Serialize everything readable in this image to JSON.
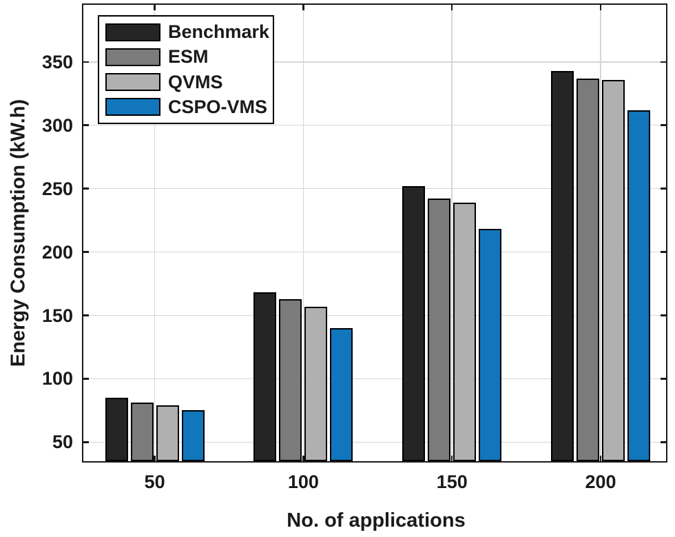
{
  "chart_data": {
    "type": "bar",
    "title": "",
    "xlabel": "No. of applications",
    "ylabel": "Energy Consumption (kW.h)",
    "categories": [
      "50",
      "100",
      "150",
      "200"
    ],
    "x": [
      50,
      100,
      150,
      200
    ],
    "series": [
      {
        "name": "Benchmark",
        "color": "#252525",
        "values": [
          85,
          168,
          252,
          343
        ]
      },
      {
        "name": "ESM",
        "color": "#7b7b7b",
        "values": [
          81,
          163,
          242,
          337
        ]
      },
      {
        "name": "QVMS",
        "color": "#b0b0b0",
        "values": [
          79,
          157,
          239,
          336
        ]
      },
      {
        "name": "CSPO-VMS",
        "color": "#1176bc",
        "values": [
          75,
          140,
          218,
          312
        ]
      }
    ],
    "ylim": [
      35,
      395
    ],
    "xlim": [
      26,
      222
    ],
    "yticks": [
      50,
      100,
      150,
      200,
      250,
      300,
      350
    ],
    "grid": true,
    "legend_position": "top-left",
    "legend_labels": [
      "Benchmark",
      "ESM",
      "QVMS",
      "CSPO-VMS"
    ],
    "bar_edge_color": "#000000",
    "grid_color": "#d6d6d6",
    "axis_color": "#1a1a1a",
    "background": "#ffffff"
  }
}
